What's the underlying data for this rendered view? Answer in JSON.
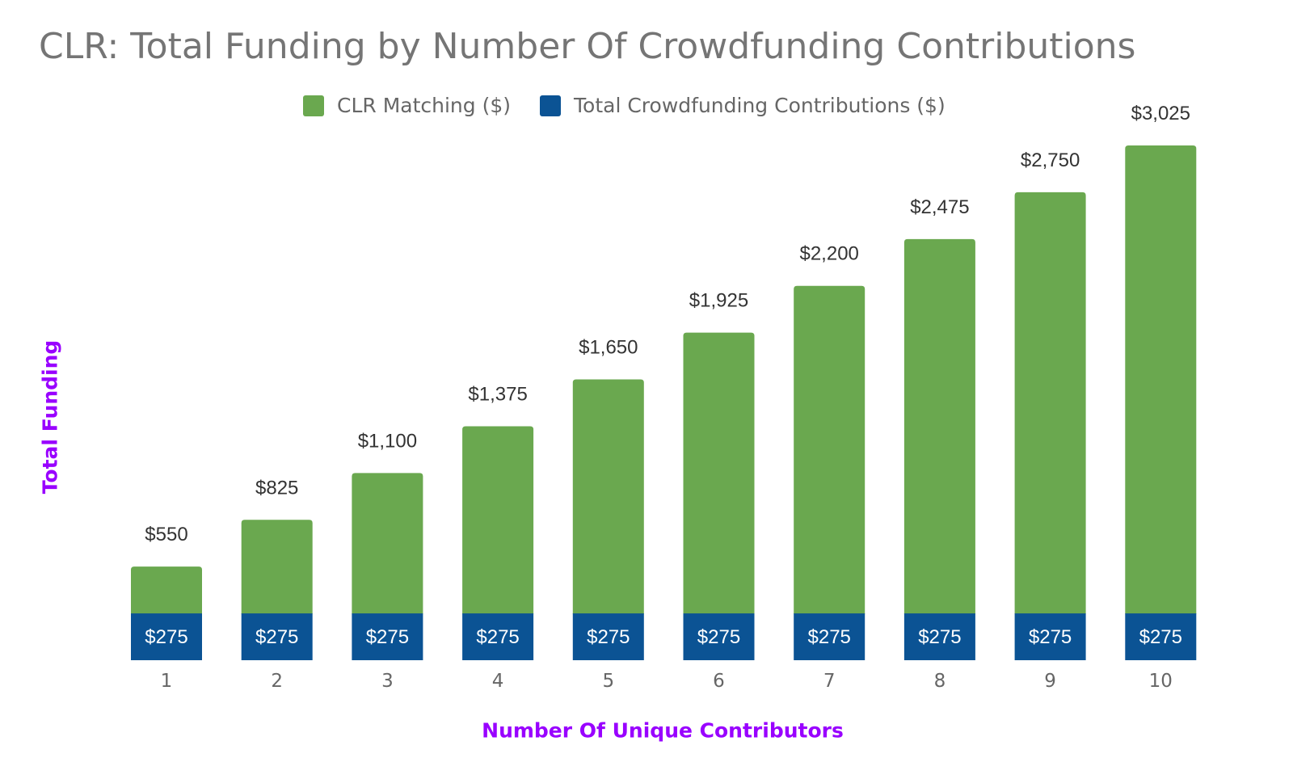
{
  "chart_data": {
    "type": "bar",
    "stacked": true,
    "title": "CLR: Total Funding by Number Of Crowdfunding Contributions",
    "xlabel": "Number Of Unique Contributors",
    "ylabel": "Total Funding",
    "categories": [
      "1",
      "2",
      "3",
      "4",
      "5",
      "6",
      "7",
      "8",
      "9",
      "10"
    ],
    "series": [
      {
        "name": "Total Crowdfunding Contributions ($)",
        "color": "#0b5394",
        "values": [
          275,
          275,
          275,
          275,
          275,
          275,
          275,
          275,
          275,
          275
        ],
        "data_labels": [
          "$275",
          "$275",
          "$275",
          "$275",
          "$275",
          "$275",
          "$275",
          "$275",
          "$275",
          "$275"
        ]
      },
      {
        "name": "CLR Matching ($)",
        "color": "#6aa84f",
        "values": [
          275,
          550,
          825,
          1100,
          1375,
          1650,
          1925,
          2200,
          2475,
          2750
        ]
      }
    ],
    "totals": [
      550,
      825,
      1100,
      1375,
      1650,
      1925,
      2200,
      2475,
      2750,
      3025
    ],
    "total_labels": [
      "$550",
      "$825",
      "$1,100",
      "$1,375",
      "$1,650",
      "$1,925",
      "$2,200",
      "$2,475",
      "$2,750",
      "$3,025"
    ],
    "legend": {
      "position": "top",
      "entries": [
        {
          "label": "CLR Matching ($)",
          "color": "#6aa84f"
        },
        {
          "label": "Total Crowdfunding Contributions ($)",
          "color": "#0b5394"
        }
      ]
    },
    "ylim": [
      0,
      3025
    ],
    "grid": false,
    "axis_label_color": "#9900ff"
  }
}
